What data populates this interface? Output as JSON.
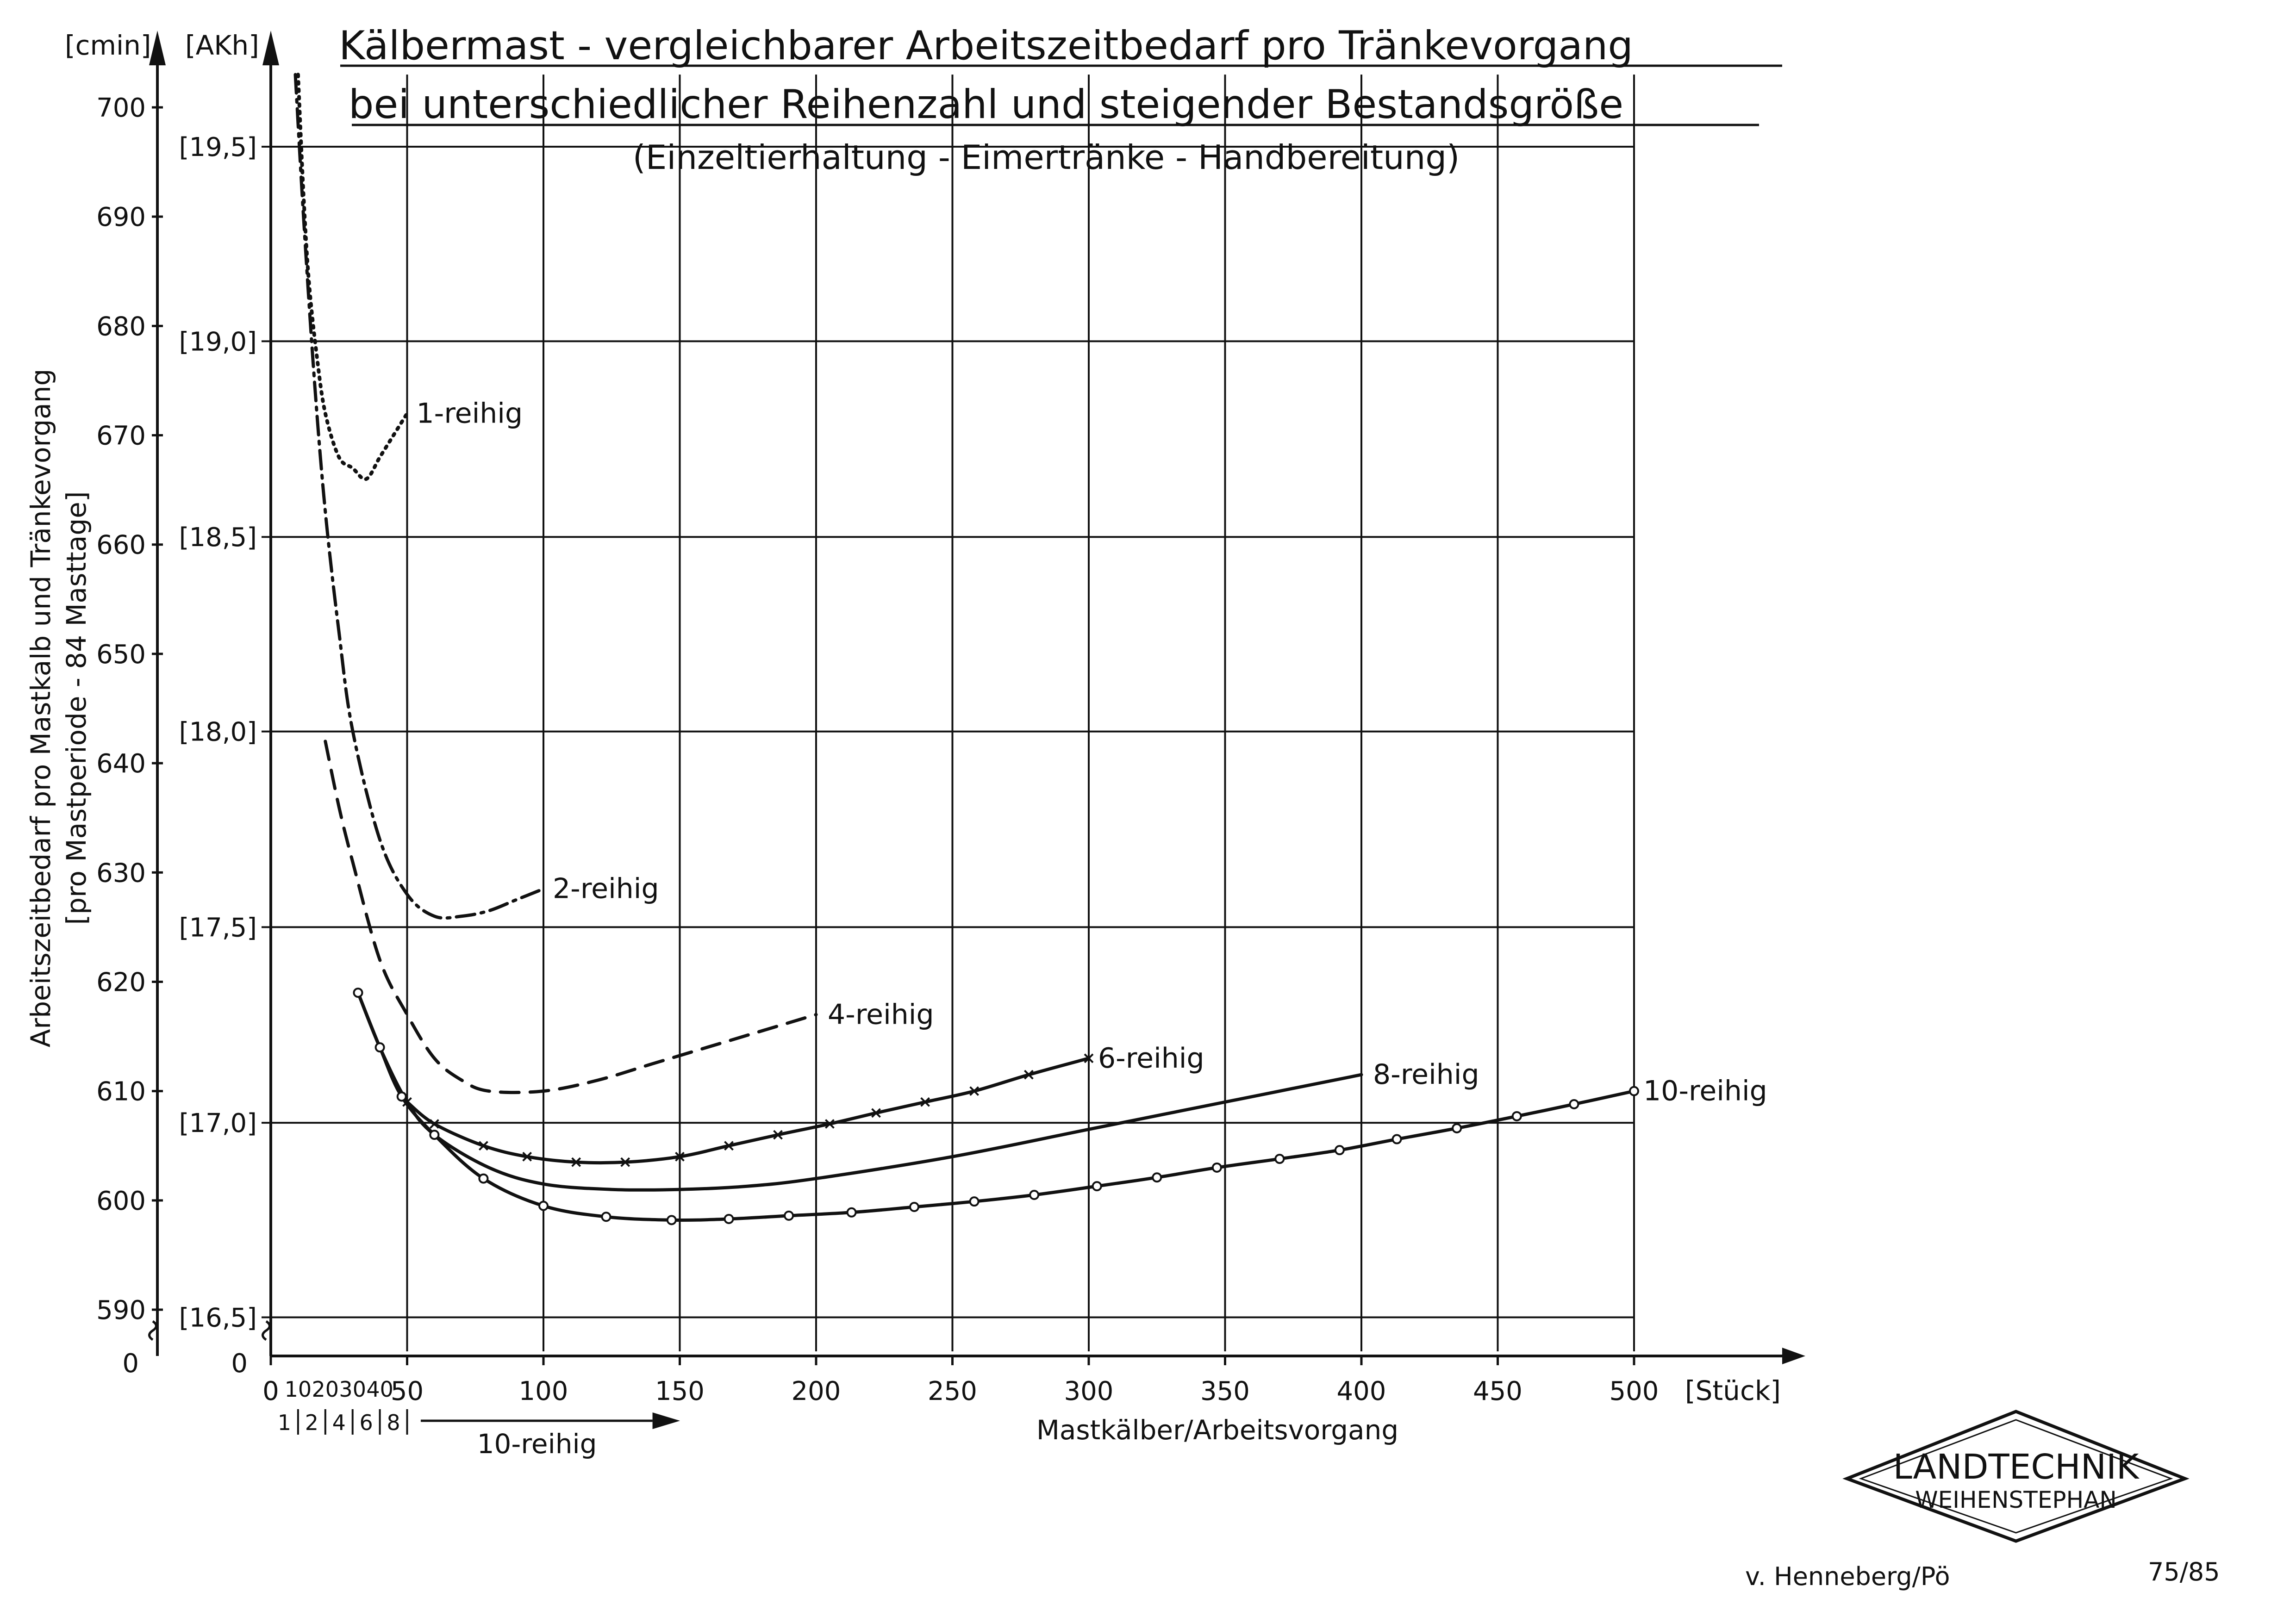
{
  "chart_data": {
    "type": "line",
    "title": "Kälbermast - vergleichbarer Arbeitszeitbedarf pro Tränkevorgang",
    "title_line2": "bei unterschiedlicher Reihenzahl und steigender Bestandsgröße",
    "subtitle": "(Einzeltierhaltung - Eimertränke - Handbereitung)",
    "xlabel": "Mastkälber/Arbeitsvorgang",
    "x_unit": "[Stück]",
    "ylabel": "Arbeitszeitbedarf pro Mastkalb und Tränkevorgang",
    "ylabel2": "[pro Mastperiode - 84 Masttage]",
    "y_unit_left": "[cmin]",
    "y_unit_right": "[AKh]",
    "xlim": [
      0,
      500
    ],
    "ylim": [
      590,
      703
    ],
    "grid": true,
    "x_ticks": [
      0,
      50,
      100,
      150,
      200,
      250,
      300,
      350,
      400,
      450,
      500
    ],
    "x_ticks_small": [
      10,
      20,
      30,
      40
    ],
    "y_ticks_cmin": [
      590,
      600,
      610,
      620,
      630,
      640,
      650,
      660,
      670,
      680,
      690,
      700
    ],
    "y_ticks_akh": [
      {
        "label": "[16,5]",
        "value": 589.3
      },
      {
        "label": "[17,0]",
        "value": 607.1
      },
      {
        "label": "[17,5]",
        "value": 625.0
      },
      {
        "label": "[18,0]",
        "value": 642.9
      },
      {
        "label": "[18,5]",
        "value": 660.7
      },
      {
        "label": "[19,0]",
        "value": 678.6
      },
      {
        "label": "[19,5]",
        "value": 696.4
      }
    ],
    "zero_label": "0",
    "row_scale": {
      "labels": [
        "1",
        "2",
        "4",
        "6",
        "8"
      ],
      "arrow_label": "10-reihig"
    },
    "series": [
      {
        "name": "1-reihig",
        "style": "dotted",
        "x": [
          10,
          12,
          14,
          17,
          20,
          25,
          30,
          35,
          40,
          45,
          50
        ],
        "y": [
          703,
          692,
          684,
          677,
          672,
          668,
          667,
          666,
          668,
          670,
          672
        ]
      },
      {
        "name": "2-reihig",
        "style": "dash-dot",
        "x": [
          9,
          12,
          16,
          20,
          25,
          30,
          40,
          50,
          60,
          70,
          80,
          90,
          100
        ],
        "y": [
          703,
          690,
          675,
          663,
          652,
          643,
          633,
          628,
          626,
          626,
          626.5,
          627.5,
          628.5
        ]
      },
      {
        "name": "4-reihig",
        "style": "dashed",
        "x": [
          20,
          25,
          30,
          40,
          50,
          60,
          70,
          80,
          100,
          120,
          140,
          160,
          180,
          200
        ],
        "y": [
          642,
          636,
          631,
          622,
          617,
          613,
          611,
          610,
          610,
          611,
          612.5,
          614,
          615.5,
          617
        ]
      },
      {
        "name": "6-reihig",
        "style": "solid-x",
        "x": [
          50,
          60,
          78,
          94,
          112,
          130,
          150,
          168,
          186,
          205,
          222,
          240,
          258,
          278,
          300
        ],
        "y": [
          609,
          607,
          605,
          604,
          603.5,
          603.5,
          604,
          605,
          606,
          607,
          608,
          609,
          610,
          611.5,
          613
        ]
      },
      {
        "name": "8-reihig",
        "style": "solid",
        "x": [
          32,
          40,
          50,
          60,
          80,
          100,
          125,
          150,
          175,
          200,
          250,
          300,
          350,
          400
        ],
        "y": [
          619,
          614,
          609,
          606,
          603,
          601.5,
          601,
          601,
          601.3,
          602,
          604,
          606.5,
          609,
          611.5
        ]
      },
      {
        "name": "10-reihig",
        "style": "solid-o",
        "x": [
          32,
          40,
          48,
          60,
          78,
          100,
          123,
          147,
          168,
          190,
          213,
          236,
          258,
          280,
          303,
          325,
          347,
          370,
          392,
          413,
          435,
          457,
          478,
          500
        ],
        "y": [
          619,
          614,
          609.5,
          606,
          602,
          599.5,
          598.5,
          598.2,
          598.3,
          598.6,
          598.9,
          599.4,
          599.9,
          600.5,
          601.3,
          602.1,
          603,
          603.8,
          604.6,
          605.6,
          606.6,
          607.7,
          608.8,
          610
        ]
      }
    ]
  },
  "logo": {
    "line1": "LANDTECHNIK",
    "line2": "WEIHENSTEPHAN"
  },
  "footer": {
    "author": "v. Henneberg/Pö",
    "code": "75/85"
  }
}
